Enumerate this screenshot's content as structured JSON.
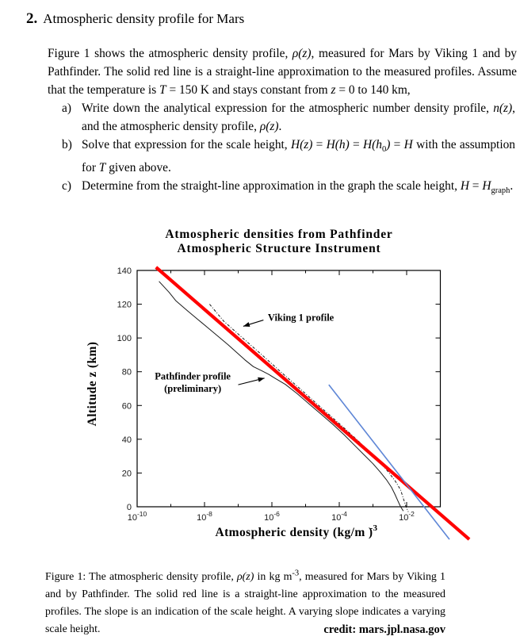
{
  "header": {
    "number": "2.",
    "title": "Atmospheric density profile for Mars"
  },
  "intro": {
    "segments": [
      {
        "t": "Figure 1 shows the atmospheric density profile, "
      },
      {
        "t": "ρ(z)",
        "i": true
      },
      {
        "t": ", measured for Mars by Viking 1 and by Pathfinder. The solid red line is a straight-line approximation to the measured profiles. Assume that the temperature is "
      },
      {
        "t": "T",
        "i": true
      },
      {
        "t": " = 150 K and stays constant from "
      },
      {
        "t": "z",
        "i": true
      },
      {
        "t": " = 0 to 140 km,"
      }
    ]
  },
  "problems": [
    {
      "label": "a)",
      "segments": [
        {
          "t": "Write down the analytical expression for the atmospheric number density profile, "
        },
        {
          "t": "n(z)",
          "i": true
        },
        {
          "t": ", and the atmospheric density profile, "
        },
        {
          "t": "ρ(z)",
          "i": true
        },
        {
          "t": "."
        }
      ]
    },
    {
      "label": "b)",
      "segments": [
        {
          "t": "Solve that expression for the scale height, "
        },
        {
          "t": "H(z)",
          "i": true
        },
        {
          "t": " = "
        },
        {
          "t": "H(h)",
          "i": true
        },
        {
          "t": " = "
        },
        {
          "t": "H(h",
          "i": true
        },
        {
          "t": "0",
          "sub": true
        },
        {
          "t": ")",
          "i": true
        },
        {
          "t": " = "
        },
        {
          "t": "H",
          "i": true
        },
        {
          "t": " with the assumption for "
        },
        {
          "t": "T",
          "i": true
        },
        {
          "t": " given above."
        }
      ]
    },
    {
      "label": "c)",
      "segments": [
        {
          "t": "Determine from the straight-line approximation in the graph the scale height, "
        },
        {
          "t": "H",
          "i": true
        },
        {
          "t": " = "
        },
        {
          "t": "H",
          "i": true
        },
        {
          "t": "graph",
          "sub": true
        },
        {
          "t": "."
        }
      ]
    }
  ],
  "caption": {
    "segments": [
      {
        "t": "Figure 1: The atmospheric density profile, "
      },
      {
        "t": "ρ(z)",
        "i": true
      },
      {
        "t": " in kg m"
      },
      {
        "t": "-3",
        "sup": true
      },
      {
        "t": ", measured for Mars by Viking 1 and by Pathfinder. The solid red line is a straight-line approximation to the measured profiles. The slope is an indication of the scale height. A varying slope indicates a varying scale height."
      }
    ],
    "credit": "credit: mars.jpl.nasa.gov"
  },
  "chart_data": {
    "type": "line",
    "title_lines": [
      "Atmospheric densities from Pathfinder",
      "Atmospheric Structure Instrument"
    ],
    "xlabel": "Atmospheric density (kg/m⁻³)",
    "xlabel_render": {
      "text": "Atmospheric density (kg/m )",
      "sup": "-3"
    },
    "ylabel": "Altitude z (km)",
    "x_scale": "log10",
    "x_range_log10": [
      -10,
      -1
    ],
    "y_range": [
      0,
      140
    ],
    "grid": false,
    "x_tick_base": "10",
    "x_major_ticks": [
      {
        "log10": -10,
        "exp": "-10"
      },
      {
        "log10": -8,
        "exp": "-8"
      },
      {
        "log10": -6,
        "exp": "-6"
      },
      {
        "log10": -4,
        "exp": "-4"
      },
      {
        "log10": -2,
        "exp": "-2"
      }
    ],
    "x_minor_ticks_log10": [
      -9,
      -7,
      -5,
      -3
    ],
    "y_ticks": [
      0,
      20,
      40,
      60,
      80,
      100,
      120,
      140
    ],
    "series": [
      {
        "name": "Pathfinder profile (preliminary)",
        "style": "solid",
        "color": "#1a1a1a",
        "width": 1,
        "points_log10x_z": [
          [
            -9.35,
            133.5
          ],
          [
            -9.05,
            127
          ],
          [
            -8.85,
            122
          ],
          [
            -8.5,
            116
          ],
          [
            -8.2,
            111
          ],
          [
            -7.9,
            106
          ],
          [
            -7.6,
            101
          ],
          [
            -7.3,
            96
          ],
          [
            -7.05,
            91.5
          ],
          [
            -6.8,
            87
          ],
          [
            -6.55,
            83
          ],
          [
            -6.3,
            80.5
          ],
          [
            -6.1,
            78.5
          ],
          [
            -5.9,
            76
          ],
          [
            -5.6,
            72.5
          ],
          [
            -5.25,
            67
          ],
          [
            -4.9,
            61
          ],
          [
            -4.55,
            55
          ],
          [
            -4.2,
            49
          ],
          [
            -3.85,
            42.5
          ],
          [
            -3.55,
            36.5
          ],
          [
            -3.25,
            30.5
          ],
          [
            -3.0,
            25.5
          ],
          [
            -2.78,
            20.5
          ],
          [
            -2.6,
            16
          ],
          [
            -2.45,
            11.5
          ],
          [
            -2.35,
            7.5
          ],
          [
            -2.25,
            3
          ],
          [
            -2.18,
            0
          ],
          [
            -2.1,
            -2.5
          ]
        ]
      },
      {
        "name": "Viking 1 profile",
        "style": "dashdot",
        "color": "#1a1a1a",
        "width": 1,
        "points_log10x_z": [
          [
            -7.85,
            120
          ],
          [
            -7.43,
            110
          ],
          [
            -6.87,
            100
          ],
          [
            -6.3,
            90
          ],
          [
            -5.74,
            80
          ],
          [
            -5.17,
            70
          ],
          [
            -4.61,
            60
          ],
          [
            -4.04,
            50
          ],
          [
            -3.49,
            40
          ],
          [
            -2.96,
            30
          ],
          [
            -2.73,
            25
          ],
          [
            -2.52,
            20
          ],
          [
            -2.33,
            15
          ],
          [
            -2.18,
            10
          ],
          [
            -2.1,
            5
          ],
          [
            -2.02,
            0
          ],
          [
            -1.95,
            -3
          ]
        ]
      },
      {
        "name": "Straight-line approximation",
        "style": "solid",
        "color": "#ff0000",
        "width": 4.2,
        "points_log10x_z": [
          [
            -9.44,
            141.9
          ],
          [
            -0.14,
            -19.3
          ]
        ]
      },
      {
        "name": "Second straight-line segment",
        "style": "solid",
        "color": "#5e86d6",
        "width": 1.6,
        "points_log10x_z": [
          [
            -4.31,
            72.3
          ],
          [
            -0.73,
            -19.3
          ]
        ]
      }
    ],
    "annotations": [
      {
        "lines": [
          "Viking 1 profile"
        ],
        "align": "start",
        "text_pos_log10x_z": [
          -6.12,
          110.2
        ],
        "arrow_from_log10x_z": [
          -6.25,
          110.6
        ],
        "arrow_to_log10x_z": [
          -6.85,
          106.9
        ]
      },
      {
        "lines": [
          "Pathfinder profile",
          "(preliminary)"
        ],
        "align": "middle",
        "text_pos_log10x_z": [
          -8.35,
          75.3
        ],
        "arrow_from_log10x_z": [
          -7.0,
          72.3
        ],
        "arrow_to_log10x_z": [
          -6.22,
          76.2
        ]
      }
    ]
  }
}
